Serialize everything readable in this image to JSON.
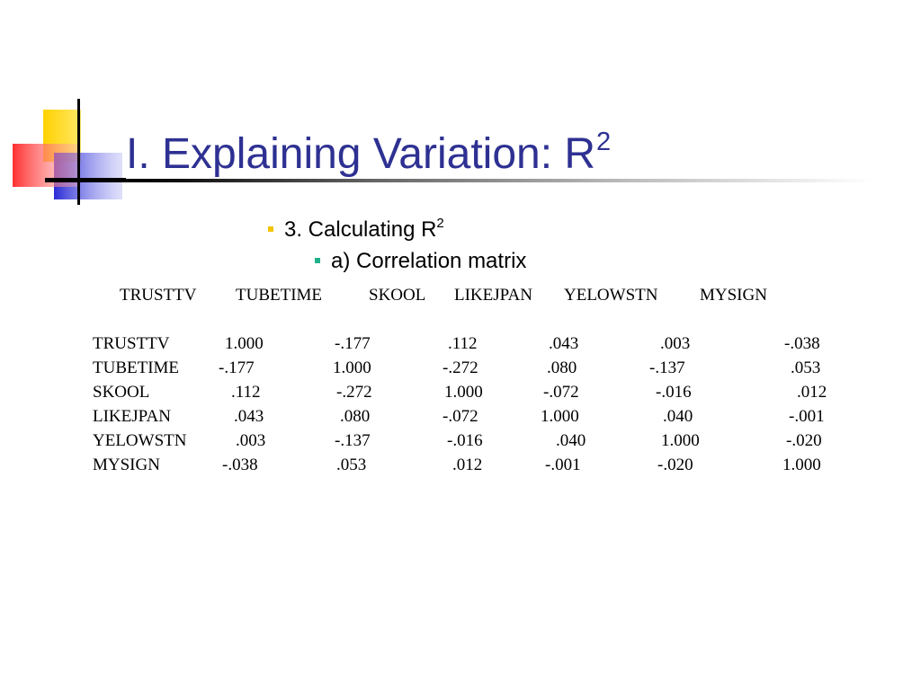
{
  "slide": {
    "title_main": "I. Explaining Variation: R",
    "title_sup": "2",
    "bullet1_text": "3. Calculating R",
    "bullet1_sup": "2",
    "bullet2_text": "a) Correlation matrix"
  },
  "colors": {
    "title": "#2e3192",
    "bullet1": "#f5c400",
    "bullet2": "#20b08a",
    "logo_yellow": "#ffd200",
    "logo_blue": "#2b2bd6",
    "logo_red": "#ff3030"
  },
  "matrix": {
    "columns": [
      "TRUSTTV",
      "TUBETIME",
      "SKOOL",
      "LIKEJPAN",
      "YELOWSTN",
      "MYSIGN"
    ],
    "rows": [
      {
        "label": "TRUSTTV",
        "values": [
          "1.000",
          "-.177",
          ".112",
          ".043",
          ".003",
          "-.038"
        ]
      },
      {
        "label": "TUBETIME",
        "values": [
          "-.177",
          "1.000",
          "-.272",
          ".080",
          "-.137",
          ".053"
        ]
      },
      {
        "label": "SKOOL",
        "values": [
          ".112",
          "-.272",
          "1.000",
          "-.072",
          "-.016",
          ".012"
        ]
      },
      {
        "label": "LIKEJPAN",
        "values": [
          ".043",
          ".080",
          "-.072",
          "1.000",
          ".040",
          "-.001"
        ]
      },
      {
        "label": "YELOWSTN",
        "values": [
          ".003",
          "-.137",
          "-.016",
          ".040",
          "1.000",
          "-.020"
        ]
      },
      {
        "label": "MYSIGN",
        "values": [
          "-.038",
          ".053",
          ".012",
          "-.001",
          "-.020",
          "1.000"
        ]
      }
    ]
  }
}
